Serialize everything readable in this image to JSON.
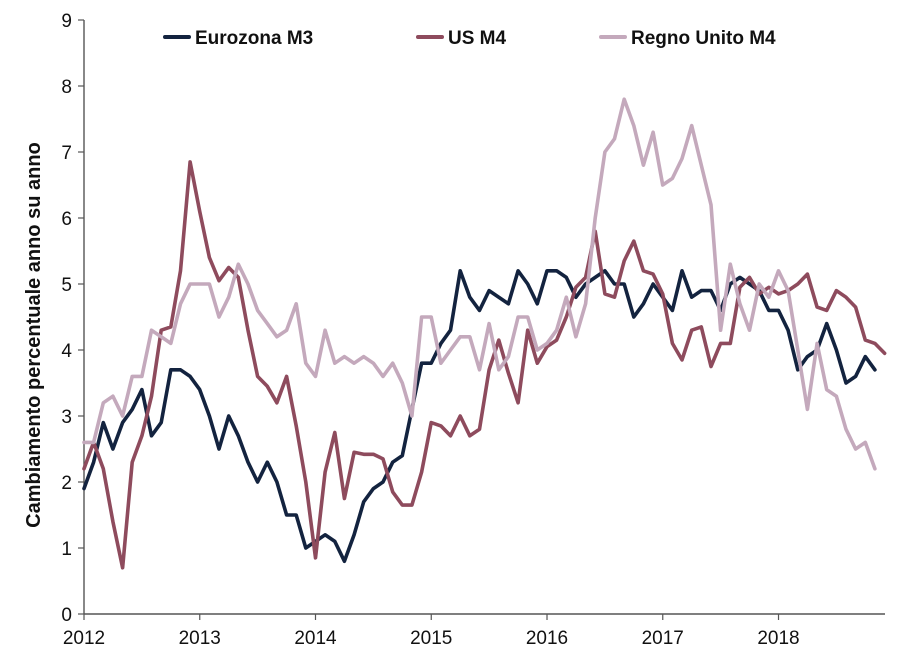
{
  "chart_data": {
    "type": "line",
    "title": "",
    "xlabel": "",
    "ylabel": "Cambiamento percentuale anno su anno",
    "ylim": [
      0,
      9
    ],
    "xlim": [
      2012.0,
      2018.92
    ],
    "y_ticks": [
      "0",
      "1",
      "2",
      "3",
      "4",
      "5",
      "6",
      "7",
      "8",
      "9"
    ],
    "x_ticks": [
      {
        "value": 2012,
        "label": "2012"
      },
      {
        "value": 2013,
        "label": "2013"
      },
      {
        "value": 2014,
        "label": "2014"
      },
      {
        "value": 2015,
        "label": "2015"
      },
      {
        "value": 2016,
        "label": "2016"
      },
      {
        "value": 2017,
        "label": "2017"
      },
      {
        "value": 2018,
        "label": "2018"
      }
    ],
    "grid": false,
    "legend_position": "top",
    "x_start": 2012.0,
    "x_step": 0.08333,
    "series": [
      {
        "name": "Eurozona M3",
        "color": "#13233f",
        "values": [
          1.9,
          2.3,
          2.9,
          2.5,
          2.9,
          3.1,
          3.4,
          2.7,
          2.9,
          3.7,
          3.7,
          3.6,
          3.4,
          3.0,
          2.5,
          3.0,
          2.7,
          2.3,
          2.0,
          2.3,
          2.0,
          1.5,
          1.5,
          1.0,
          1.1,
          1.2,
          1.1,
          0.8,
          1.2,
          1.7,
          1.9,
          2.0,
          2.3,
          2.4,
          3.1,
          3.8,
          3.8,
          4.1,
          4.3,
          5.2,
          4.8,
          4.6,
          4.9,
          4.8,
          4.7,
          5.2,
          5.0,
          4.7,
          5.2,
          5.2,
          5.1,
          4.8,
          5.0,
          5.1,
          5.2,
          5.0,
          5.0,
          4.5,
          4.7,
          5.0,
          4.8,
          4.6,
          5.2,
          4.8,
          4.9,
          4.9,
          4.6,
          5.0,
          5.1,
          5.0,
          4.9,
          4.6,
          4.6,
          4.3,
          3.7,
          3.9,
          4.0,
          4.4,
          4.0,
          3.5,
          3.6,
          3.9,
          3.7
        ]
      },
      {
        "name": "US M4",
        "color": "#8e4b5d",
        "values": [
          2.2,
          2.6,
          2.2,
          1.4,
          0.7,
          2.3,
          2.7,
          3.3,
          4.3,
          4.35,
          5.2,
          6.85,
          6.1,
          5.4,
          5.05,
          5.25,
          5.1,
          4.3,
          3.6,
          3.45,
          3.2,
          3.6,
          2.85,
          2.0,
          0.85,
          2.15,
          2.75,
          1.75,
          2.45,
          2.42,
          2.42,
          2.35,
          1.85,
          1.65,
          1.65,
          2.15,
          2.9,
          2.85,
          2.7,
          3.0,
          2.7,
          2.8,
          3.7,
          4.15,
          3.65,
          3.2,
          4.3,
          3.8,
          4.05,
          4.15,
          4.5,
          4.95,
          5.1,
          5.8,
          4.85,
          4.8,
          5.35,
          5.65,
          5.2,
          5.15,
          4.85,
          4.1,
          3.85,
          4.3,
          4.35,
          3.75,
          4.1,
          4.1,
          4.95,
          5.1,
          4.85,
          4.95,
          4.85,
          4.9,
          5.0,
          5.15,
          4.65,
          4.6,
          4.9,
          4.8,
          4.65,
          4.15,
          4.1,
          3.95
        ]
      },
      {
        "name": "Regno Unito M4",
        "color": "#c4a9bc",
        "values": [
          2.6,
          2.6,
          3.2,
          3.3,
          3.0,
          3.6,
          3.6,
          4.3,
          4.2,
          4.1,
          4.7,
          5.0,
          5.0,
          5.0,
          4.5,
          4.8,
          5.3,
          5.0,
          4.6,
          4.4,
          4.2,
          4.3,
          4.7,
          3.8,
          3.6,
          4.3,
          3.8,
          3.9,
          3.8,
          3.9,
          3.8,
          3.6,
          3.8,
          3.5,
          3.0,
          4.5,
          4.5,
          3.8,
          4.0,
          4.2,
          4.2,
          3.7,
          4.4,
          3.7,
          3.9,
          4.5,
          4.5,
          4.0,
          4.1,
          4.3,
          4.8,
          4.2,
          4.7,
          6.0,
          7.0,
          7.2,
          7.8,
          7.4,
          6.8,
          7.3,
          6.5,
          6.6,
          6.9,
          7.4,
          6.8,
          6.2,
          4.3,
          5.3,
          4.7,
          4.3,
          5.0,
          4.8,
          5.2,
          4.9,
          4.0,
          3.1,
          4.1,
          3.4,
          3.3,
          2.8,
          2.5,
          2.6,
          2.2
        ]
      }
    ]
  }
}
